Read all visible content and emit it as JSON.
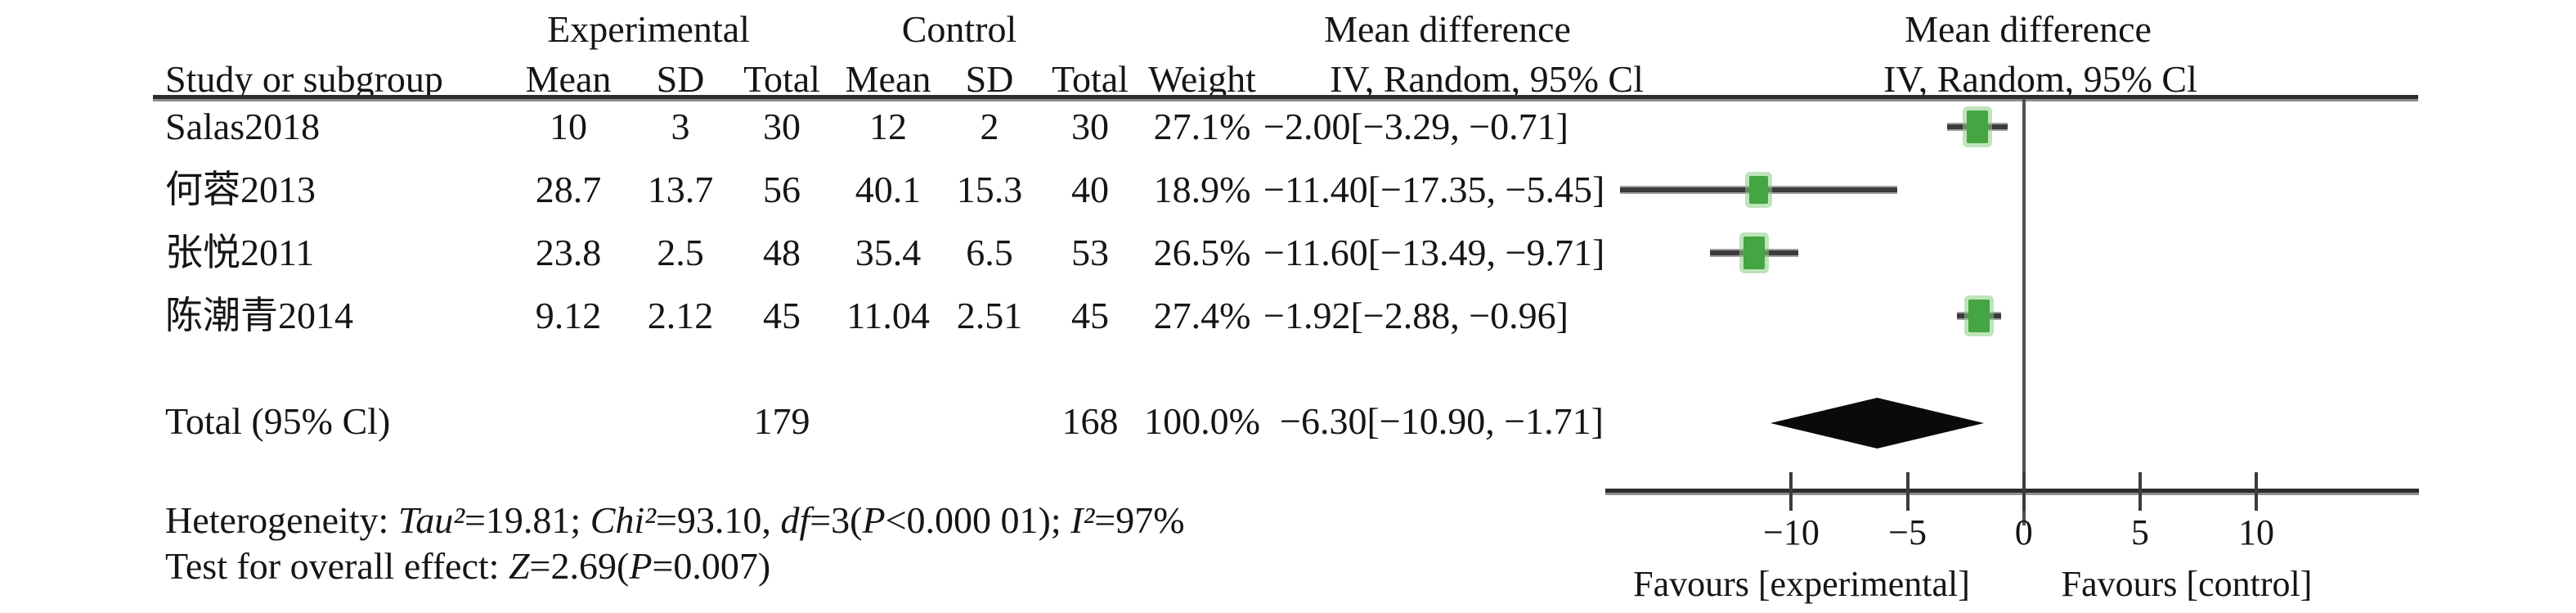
{
  "figure": {
    "background": "#ffffff",
    "text_color": "#151515",
    "accent_green": "#44a542",
    "group_headers": {
      "experimental": "Experimental",
      "control": "Control",
      "mean_difference_left": "Mean difference",
      "mean_difference_right": "Mean difference"
    },
    "column_headers": {
      "study": "Study or subgroup",
      "exp_mean": "Mean",
      "exp_sd": "SD",
      "exp_total": "Total",
      "ctrl_mean": "Mean",
      "ctrl_sd": "SD",
      "ctrl_total": "Total",
      "weight": "Weight",
      "iv_left": "IV, Random, 95% Cl",
      "iv_right": "IV, Random, 95% Cl"
    },
    "table": {
      "rows": [
        {
          "study": "Salas2018",
          "e_mean": "10",
          "e_sd": "3",
          "e_total": "30",
          "c_mean": "12",
          "c_sd": "2",
          "c_total": "30",
          "weight": "27.1%",
          "ci": "−2.00[−3.29, −0.71]"
        },
        {
          "study": "何蓉2013",
          "e_mean": "28.7",
          "e_sd": "13.7",
          "e_total": "56",
          "c_mean": "40.1",
          "c_sd": "15.3",
          "c_total": "40",
          "weight": "18.9%",
          "ci": "−11.40[−17.35, −5.45]"
        },
        {
          "study": "张悦2011",
          "e_mean": "23.8",
          "e_sd": "2.5",
          "e_total": "48",
          "c_mean": "35.4",
          "c_sd": "6.5",
          "c_total": "53",
          "weight": "26.5%",
          "ci": "−11.60[−13.49, −9.71]"
        },
        {
          "study": "陈潮青2014",
          "e_mean": "9.12",
          "e_sd": "2.12",
          "e_total": "45",
          "c_mean": "11.04",
          "c_sd": "2.51",
          "c_total": "45",
          "weight": "27.4%",
          "ci": "−1.92[−2.88, −0.96]"
        }
      ],
      "total": {
        "label": "Total (95% Cl)",
        "e_total": "179",
        "c_total": "168",
        "weight": "100.0%",
        "ci": "−6.30[−10.90, −1.71]"
      }
    },
    "stats": {
      "het": {
        "s0": "Heterogeneity: ",
        "s1": "Tau²",
        "s2": "=19.81; ",
        "s3": "Chi²",
        "s4": "=93.10, ",
        "s5": "df",
        "s6": "=3(",
        "s7": "P",
        "s8": "<0.000 01); ",
        "s9": "I²",
        "s10": "=97%"
      },
      "test": {
        "s0": "Test for overall effect: ",
        "s1": "Z",
        "s2": "=2.69(",
        "s3": "P",
        "s4": "=0.007)"
      }
    },
    "axis": {
      "favours_left": "Favours [experimental]",
      "favours_right": "Favours [control]"
    }
  },
  "chart_data": {
    "type": "scatter",
    "variant": "forest-plot-mean-difference",
    "title": "Mean difference — IV, Random, 95% Cl",
    "x_ticks": [
      -10,
      -5,
      0,
      5,
      10
    ],
    "xlim": [
      -18,
      17
    ],
    "zero_line": 0,
    "grid": false,
    "marker_color": "#44a542",
    "x_axis_labels": {
      "left": "Favours [experimental]",
      "right": "Favours [control]"
    },
    "studies": [
      {
        "study": "Salas2018",
        "exp_mean": 10,
        "exp_sd": 3,
        "exp_total": 30,
        "ctrl_mean": 12,
        "ctrl_sd": 2,
        "ctrl_total": 30,
        "weight_pct": 27.1,
        "md": -2.0,
        "ci_low": -3.29,
        "ci_high": -0.71
      },
      {
        "study": "何蓉2013",
        "exp_mean": 28.7,
        "exp_sd": 13.7,
        "exp_total": 56,
        "ctrl_mean": 40.1,
        "ctrl_sd": 15.3,
        "ctrl_total": 40,
        "weight_pct": 18.9,
        "md": -11.4,
        "ci_low": -17.35,
        "ci_high": -5.45
      },
      {
        "study": "张悦2011",
        "exp_mean": 23.8,
        "exp_sd": 2.5,
        "exp_total": 48,
        "ctrl_mean": 35.4,
        "ctrl_sd": 6.5,
        "ctrl_total": 53,
        "weight_pct": 26.5,
        "md": -11.6,
        "ci_low": -13.49,
        "ci_high": -9.71
      },
      {
        "study": "陈潮青2014",
        "exp_mean": 9.12,
        "exp_sd": 2.12,
        "exp_total": 45,
        "ctrl_mean": 11.04,
        "ctrl_sd": 2.51,
        "ctrl_total": 45,
        "weight_pct": 27.4,
        "md": -1.92,
        "ci_low": -2.88,
        "ci_high": -0.96
      }
    ],
    "total": {
      "label": "Total (95% Cl)",
      "exp_total": 179,
      "ctrl_total": 168,
      "weight_pct": 100.0,
      "md": -6.3,
      "ci_low": -10.9,
      "ci_high": -1.71
    },
    "heterogeneity": {
      "tau2": 19.81,
      "chi2": 93.1,
      "df": 3,
      "p": "<0.000 01",
      "i2_pct": 97
    },
    "overall_effect": {
      "z": 2.69,
      "p": 0.007
    }
  }
}
